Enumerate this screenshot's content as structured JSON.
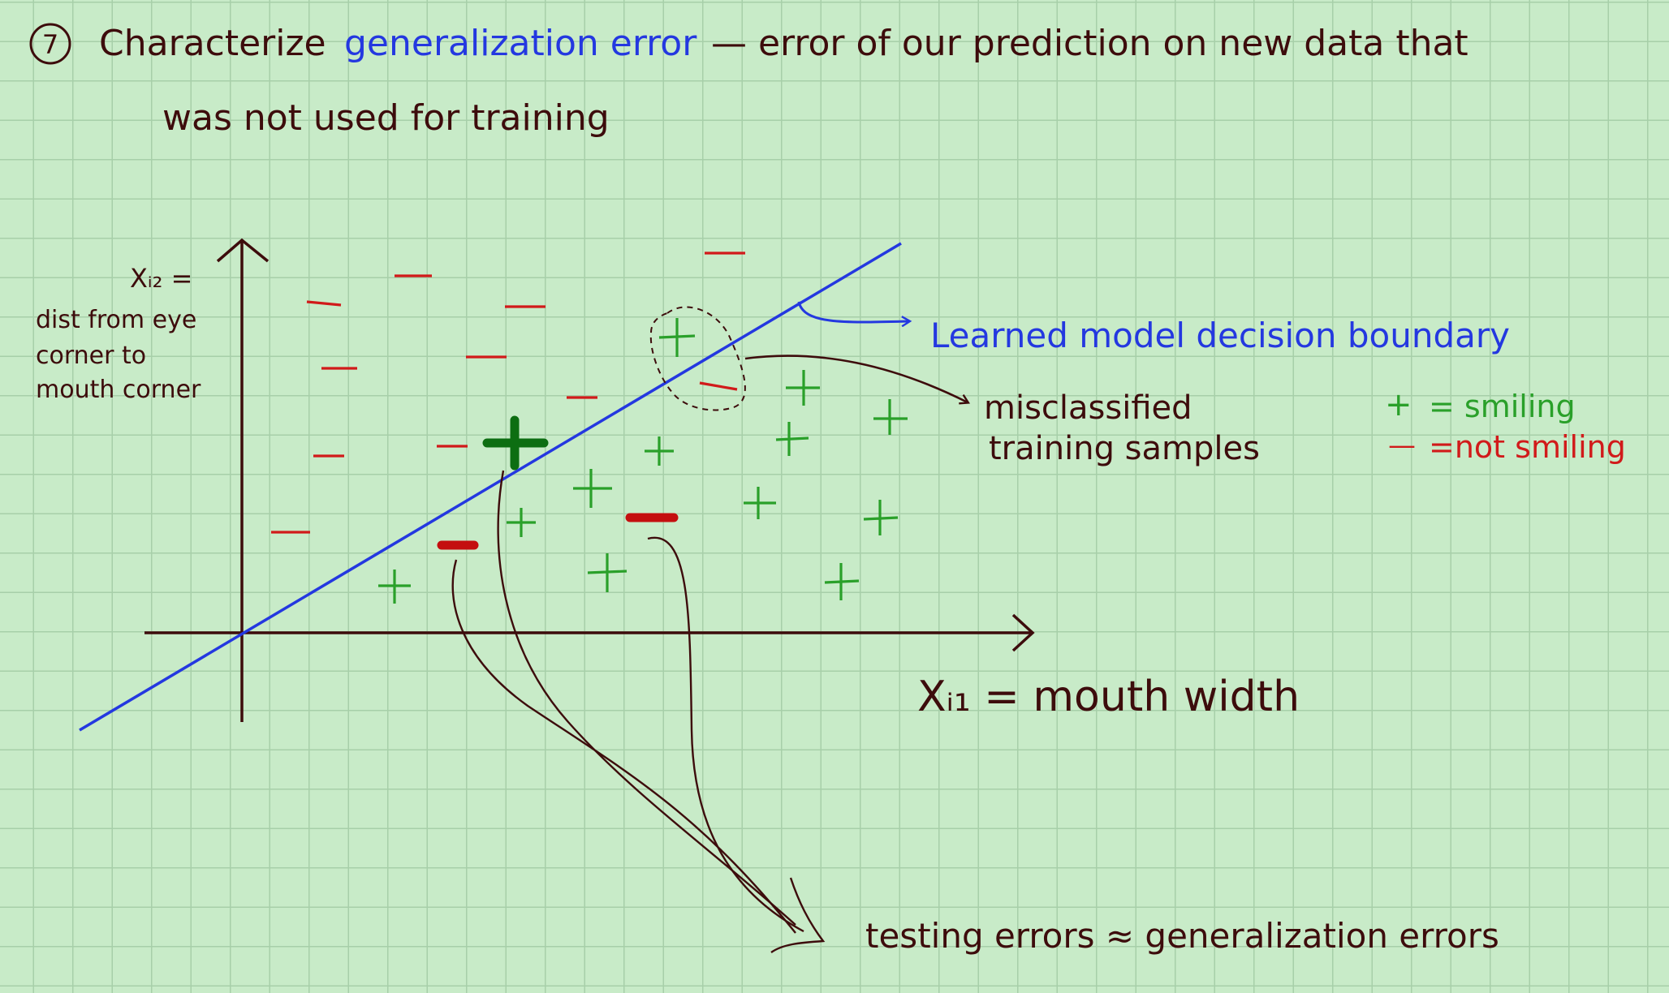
{
  "heading": {
    "number": "7",
    "prefix": "Characterize",
    "term": "generalization error",
    "definition": "— error of our prediction on new data that",
    "line2": "was not used for training"
  },
  "axes": {
    "y_label_line1": "Xᵢ₂ =",
    "y_label_line2": "dist from eye",
    "y_label_line3": "corner to",
    "y_label_line4": "mouth corner",
    "x_label": "Xᵢ₁ = mouth width"
  },
  "annotations": {
    "boundary": "Learned model decision boundary",
    "misclassified_line1": "misclassified",
    "misclassified_line2": "training samples",
    "testing": "testing errors  ≈  generalization errors"
  },
  "legend": {
    "plus_symbol": "+",
    "plus_text": "= smiling",
    "minus_symbol": "—",
    "minus_text": "=not smiling"
  },
  "colors": {
    "ink": "#3d0c0c",
    "blue": "#2438e0",
    "green": "#2aa02a",
    "dark_green": "#0d6e12",
    "red": "#d11a1a",
    "red_bold": "#c40f0f"
  }
}
